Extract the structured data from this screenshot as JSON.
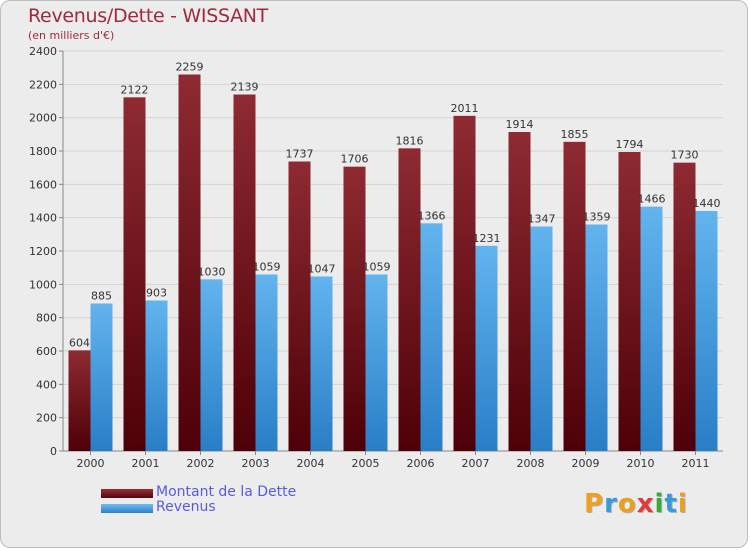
{
  "chart_data": {
    "type": "bar",
    "title": "Revenus/Dette - WISSANT",
    "subtitle": "(en milliers d'€)",
    "categories": [
      "2000",
      "2001",
      "2002",
      "2003",
      "2004",
      "2005",
      "2006",
      "2007",
      "2008",
      "2009",
      "2010",
      "2011"
    ],
    "series": [
      {
        "name": "Montant de la Dette",
        "color": "#7a1a22",
        "values": [
          604,
          2122,
          2259,
          2139,
          1737,
          1706,
          1816,
          2011,
          1914,
          1855,
          1794,
          1730
        ]
      },
      {
        "name": "Revenus",
        "color": "#4aa3e6",
        "values": [
          885,
          903,
          1030,
          1059,
          1047,
          1059,
          1366,
          1231,
          1347,
          1359,
          1466,
          1440
        ]
      }
    ],
    "ylim": [
      0,
      2400
    ],
    "yticks": [
      0,
      200,
      400,
      600,
      800,
      1000,
      1200,
      1400,
      1600,
      1800,
      2000,
      2200,
      2400
    ],
    "grid": true,
    "legend": "bottom-left"
  },
  "logo": {
    "letters": [
      {
        "ch": "P",
        "color": "#f0a020"
      },
      {
        "ch": "r",
        "color": "#3a9ad9"
      },
      {
        "ch": "o",
        "color": "#e8a020"
      },
      {
        "ch": "x",
        "color": "#e03a3a"
      },
      {
        "ch": "i",
        "color": "#3aaa3a"
      },
      {
        "ch": "t",
        "color": "#3a9ad9"
      },
      {
        "ch": "i",
        "color": "#e8a020"
      }
    ]
  }
}
